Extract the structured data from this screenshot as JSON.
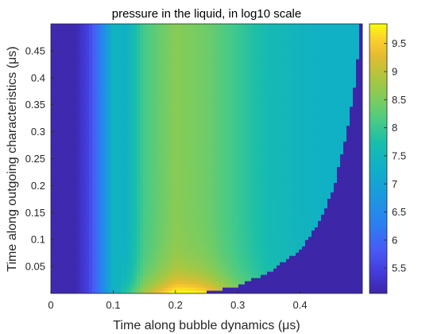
{
  "chart_data": {
    "type": "heatmap",
    "title": "pressure in the liquid, in log10 scale",
    "xlabel": "Time along bubble dynamics (μs)",
    "ylabel": "Time along outgoing characteristics (μs)",
    "xlim": [
      0,
      0.5
    ],
    "ylim": [
      0,
      0.5
    ],
    "x_ticks": [
      0,
      0.1,
      0.2,
      0.3,
      0.4
    ],
    "x_tick_labels": [
      "0",
      "0.1",
      "0.2",
      "0.3",
      "0.4"
    ],
    "y_ticks": [
      0.05,
      0.1,
      0.15,
      0.2,
      0.25,
      0.3,
      0.35,
      0.4,
      0.45
    ],
    "y_tick_labels": [
      "0.05",
      "0.1",
      "0.15",
      "0.2",
      "0.25",
      "0.3",
      "0.35",
      "0.4",
      "0.45"
    ],
    "colorbar": {
      "range": [
        5.05,
        9.85
      ],
      "ticks": [
        5.5,
        6,
        6.5,
        7,
        7.5,
        8,
        8.5,
        9,
        9.5
      ],
      "tick_labels": [
        "5.5",
        "6",
        "6.5",
        "7",
        "7.5",
        "8",
        "8.5",
        "9",
        "9.5"
      ],
      "colormap": "parula"
    },
    "profile_along_x": {
      "x": [
        0.0,
        0.04,
        0.06,
        0.08,
        0.1,
        0.12,
        0.15,
        0.2,
        0.25,
        0.3,
        0.35,
        0.4,
        0.45,
        0.5
      ],
      "value": [
        5.1,
        5.1,
        5.5,
        6.3,
        7.4,
        7.3,
        8.1,
        8.6,
        8.4,
        8.0,
        7.6,
        7.4,
        7.3,
        7.3
      ]
    },
    "peak": {
      "x": 0.22,
      "y": 0.005,
      "value": 9.85
    },
    "unsolved_region_boundary": {
      "x": [
        0.24,
        0.3,
        0.35,
        0.4,
        0.43,
        0.455,
        0.475,
        0.49,
        0.497
      ],
      "y": [
        0.0,
        0.015,
        0.04,
        0.08,
        0.13,
        0.2,
        0.3,
        0.4,
        0.5
      ]
    }
  },
  "colors": {
    "parula_low": "#3d26a8",
    "parula_mid": "#17b7c3",
    "parula_high": "#f9fb0e",
    "axis": "#262626",
    "background": "#ffffff"
  }
}
